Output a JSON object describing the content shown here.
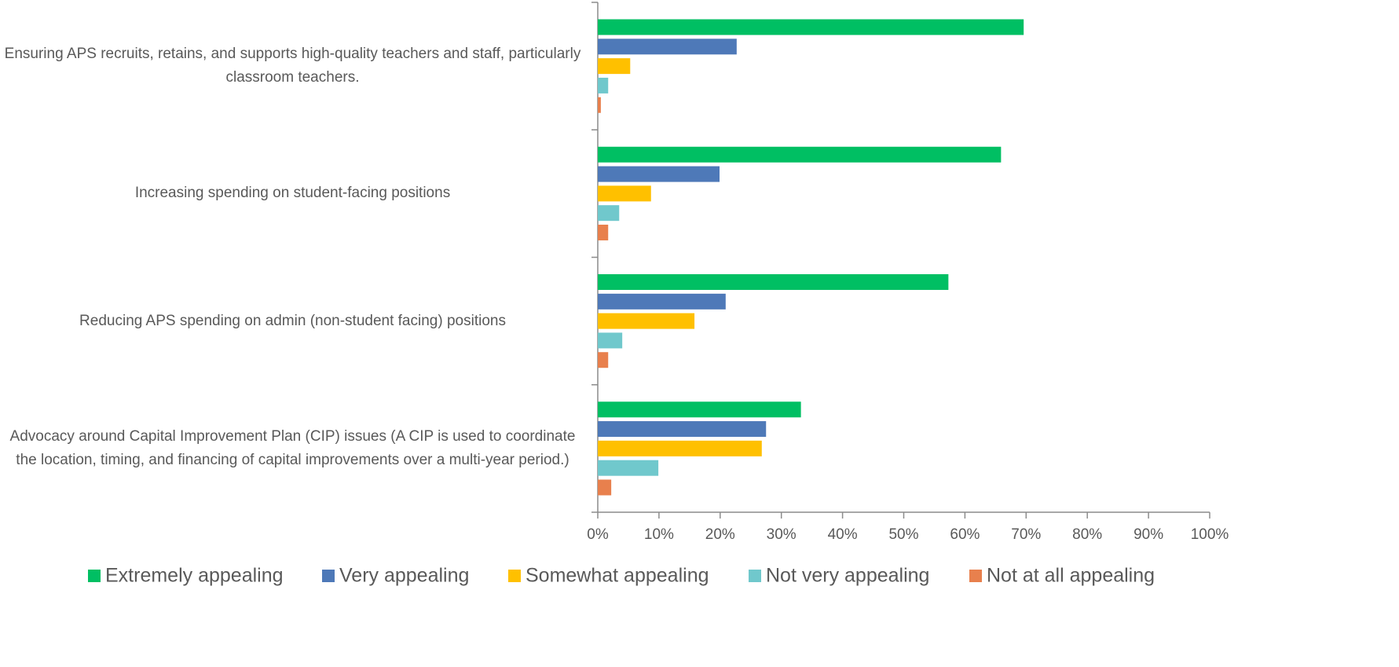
{
  "chart_data": {
    "type": "hbar",
    "categories": [
      "Ensuring APS recruits, retains, and supports high-quality teachers and staff, particularly classroom teachers.",
      "Increasing spending on student-facing positions",
      "Reducing APS spending on admin (non-student facing) positions",
      "Advocacy around Capital Improvement Plan (CIP) issues (A CIP is used to coordinate the location, timing, and financing of capital improvements over a multi-year period.)"
    ],
    "series": [
      {
        "name": "Extremely appealing",
        "color": "#00bf63",
        "values": [
          69.6,
          65.9,
          57.3,
          33.2
        ]
      },
      {
        "name": "Very appealing",
        "color": "#4e79b8",
        "values": [
          22.7,
          19.9,
          20.9,
          27.5
        ]
      },
      {
        "name": "Somewhat appealing",
        "color": "#ffc000",
        "values": [
          5.3,
          8.7,
          15.8,
          26.8
        ]
      },
      {
        "name": "Not very appealing",
        "color": "#70c8cc",
        "values": [
          1.7,
          3.5,
          4.0,
          9.9
        ]
      },
      {
        "name": "Not at all appealing",
        "color": "#e8804d",
        "values": [
          0.5,
          1.7,
          1.7,
          2.2
        ]
      }
    ],
    "xlim": [
      0,
      100
    ],
    "xticks": [
      {
        "value": 0,
        "label": "0%"
      },
      {
        "value": 10,
        "label": "10%"
      },
      {
        "value": 20,
        "label": "20%"
      },
      {
        "value": 30,
        "label": "30%"
      },
      {
        "value": 40,
        "label": "40%"
      },
      {
        "value": 50,
        "label": "50%"
      },
      {
        "value": 60,
        "label": "60%"
      },
      {
        "value": 70,
        "label": "70%"
      },
      {
        "value": 80,
        "label": "80%"
      },
      {
        "value": 90,
        "label": "90%"
      },
      {
        "value": 100,
        "label": "100%"
      }
    ],
    "legend": "bottom"
  }
}
